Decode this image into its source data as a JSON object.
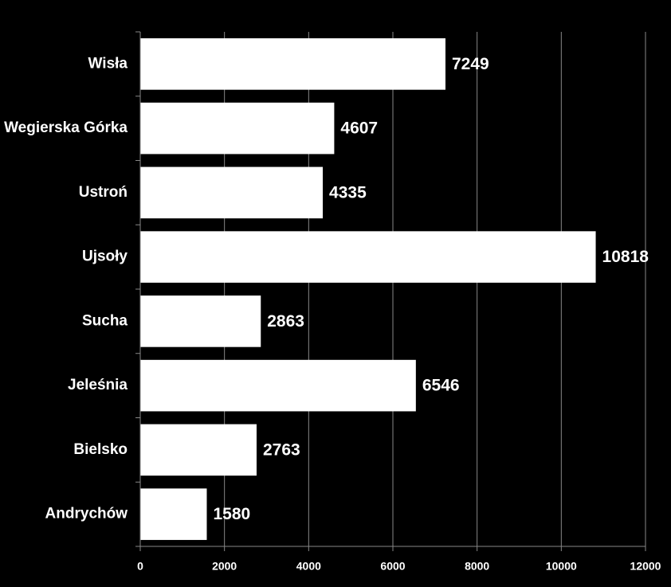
{
  "chart_data": {
    "type": "barh",
    "categories": [
      "Wisła",
      "Wegierska Górka",
      "Ustroń",
      "Ujsoły",
      "Sucha",
      "Jeleśnia",
      "Bielsko",
      "Andrychów"
    ],
    "values": [
      7249,
      4607,
      4335,
      10818,
      2863,
      6546,
      2763,
      1580
    ],
    "color": "#ffffff",
    "xlim": [
      0,
      12000
    ],
    "xticks": [
      0,
      2000,
      4000,
      6000,
      8000,
      10000,
      12000
    ],
    "grid": true
  }
}
